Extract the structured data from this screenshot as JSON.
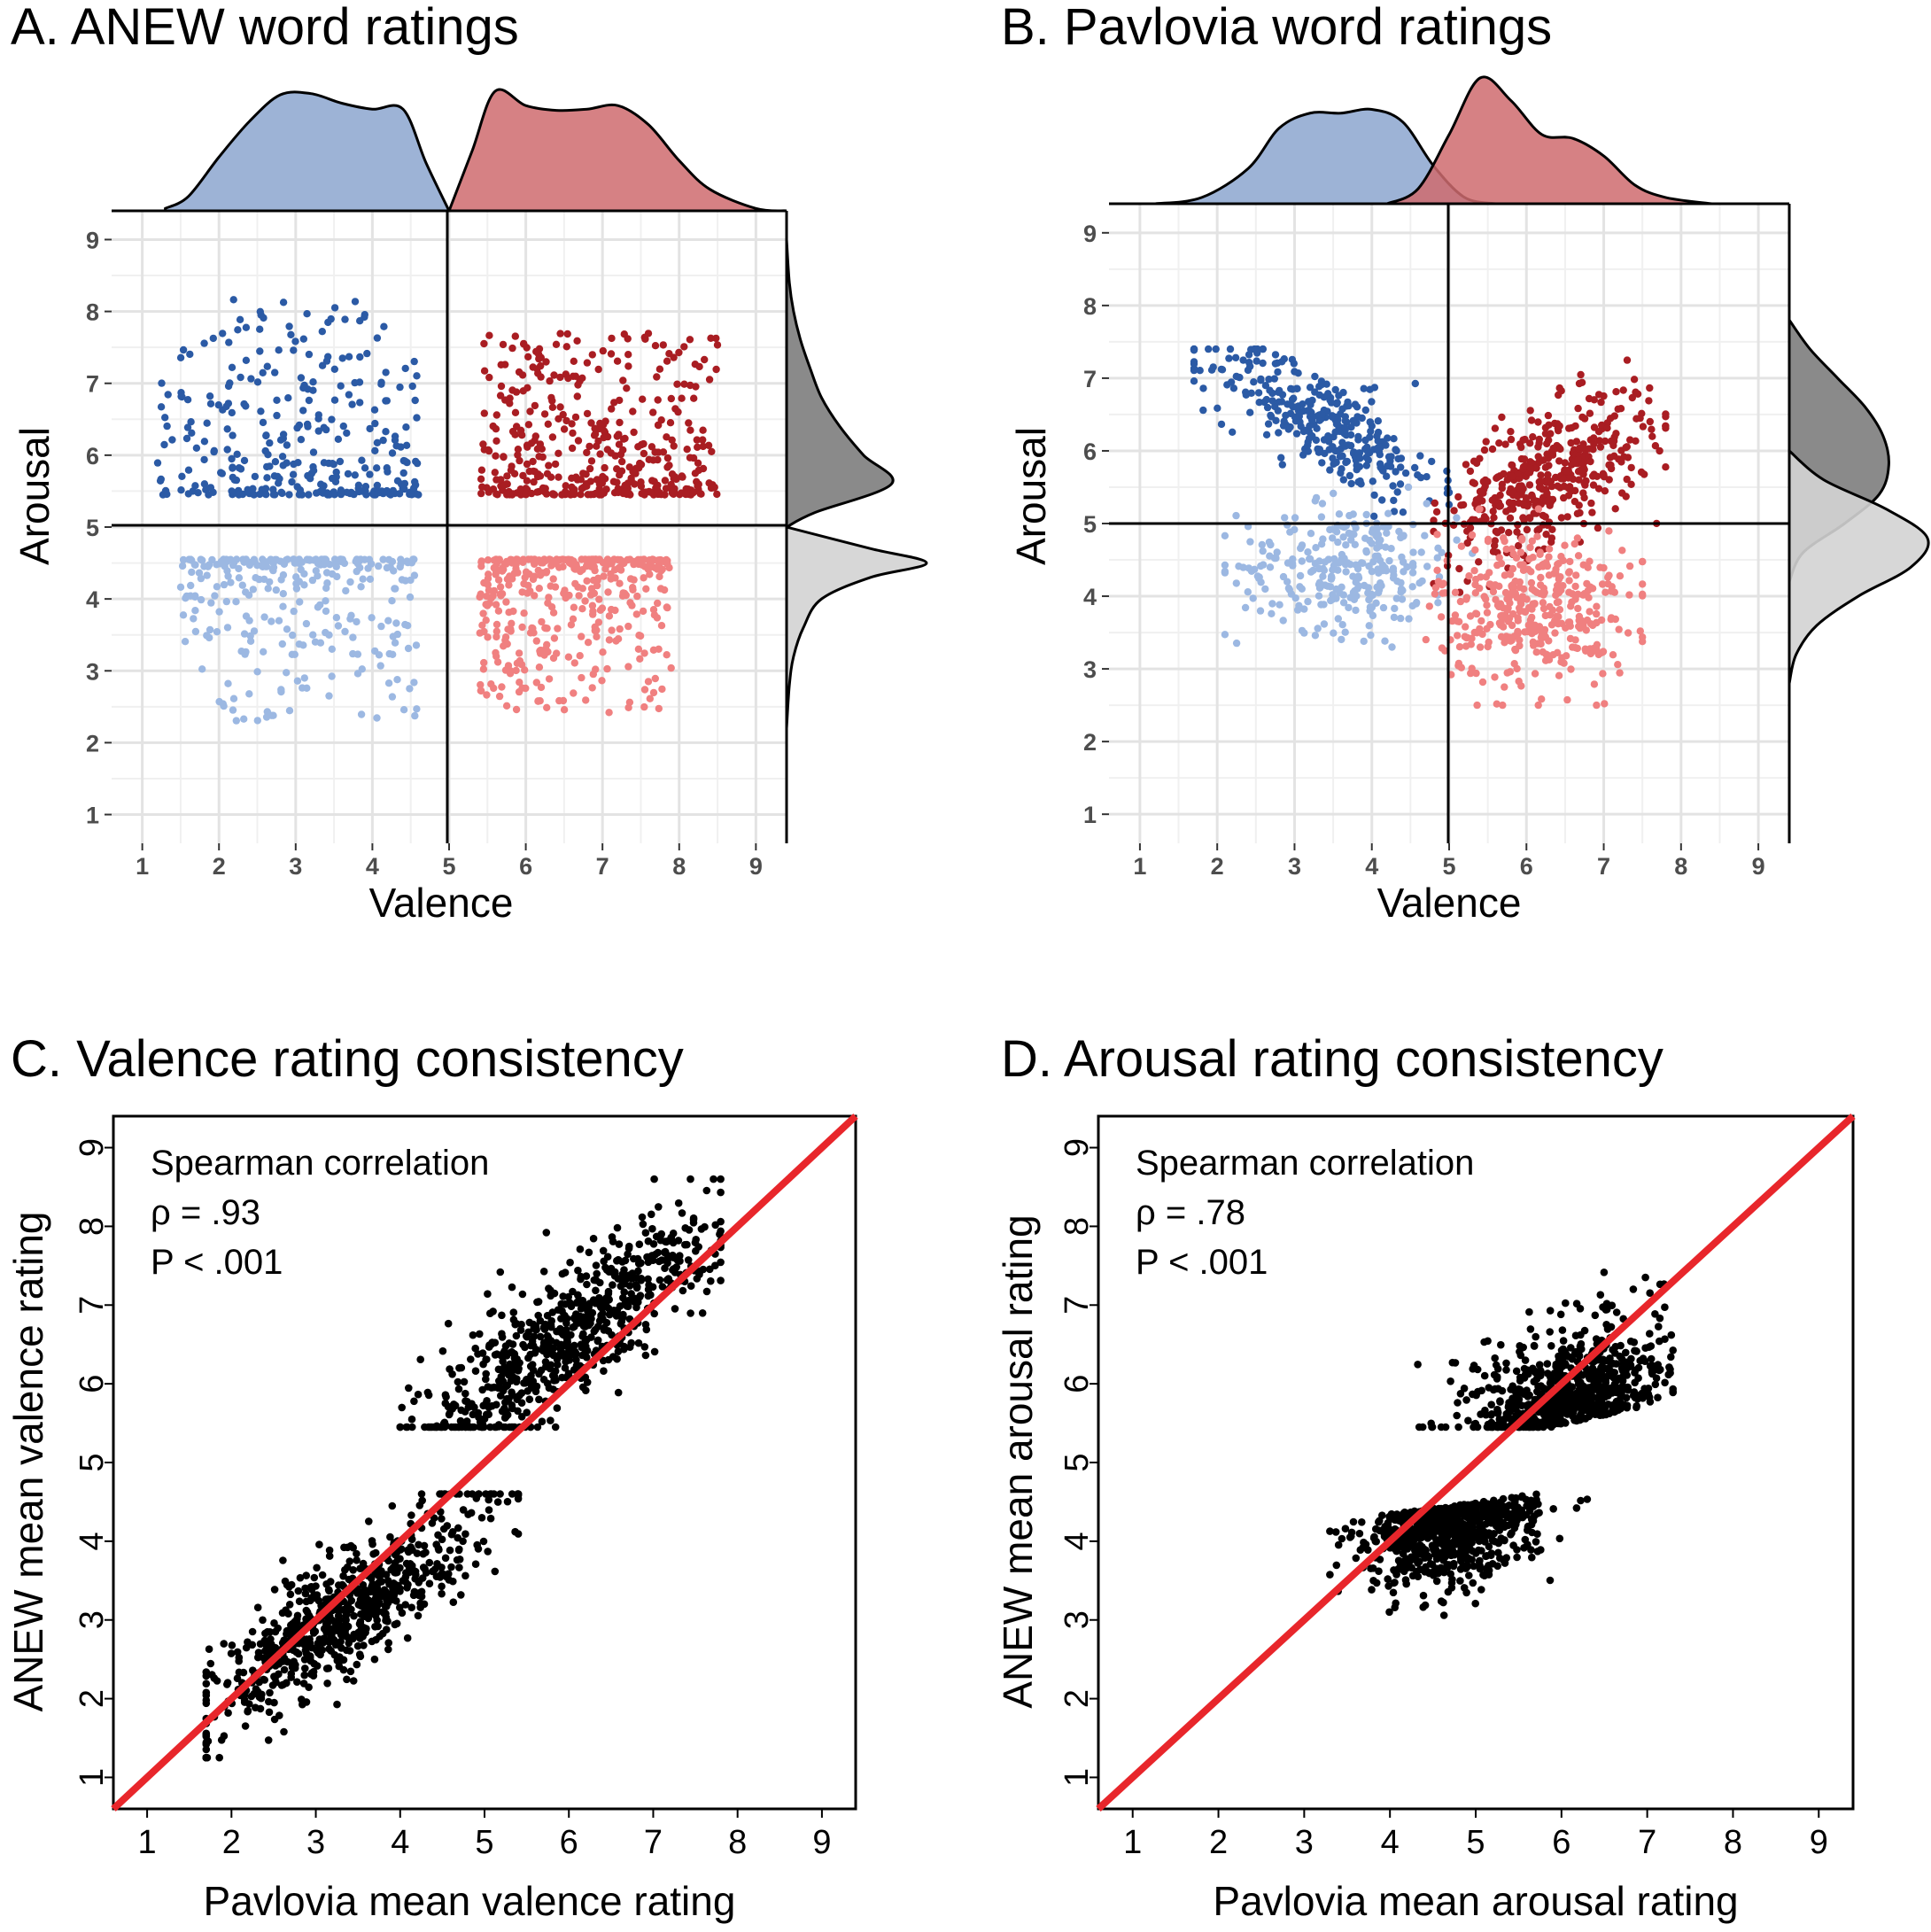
{
  "chart_data": [
    {
      "panel": "A",
      "type": "scatter",
      "title": "A. ANEW word ratings",
      "xlabel": "Valence",
      "ylabel": "Arousal",
      "xlim": [
        0.6,
        9.4
      ],
      "ylim": [
        0.6,
        9.4
      ],
      "xticks": [
        1,
        2,
        3,
        4,
        5,
        6,
        7,
        8,
        9
      ],
      "yticks": [
        1,
        2,
        3,
        4,
        5,
        6,
        7,
        8,
        9
      ],
      "reference_lines": {
        "x": 5,
        "y": 5
      },
      "grid": true,
      "colors": {
        "neg_high": "#2b5aa5",
        "neg_low": "#9cb8e2",
        "pos_high": "#a91d22",
        "pos_low": "#f08080",
        "neg_density": "#8ca6cf",
        "pos_density": "#cf6b6f",
        "high_density": "#7d7d7d",
        "low_density": "#d3d3d3"
      },
      "series": [
        {
          "group": "negative-high-arousal",
          "color": "#2b5aa5",
          "x_range": [
            1.2,
            4.6
          ],
          "y_range": [
            5.45,
            8.2
          ],
          "count": 320
        },
        {
          "group": "negative-low-arousal",
          "color": "#9cb8e2",
          "x_range": [
            1.5,
            4.6
          ],
          "y_range": [
            2.3,
            4.55
          ],
          "count": 280
        },
        {
          "group": "positive-high-arousal",
          "color": "#a91d22",
          "x_range": [
            5.4,
            8.5
          ],
          "y_range": [
            5.45,
            7.7
          ],
          "count": 420
        },
        {
          "group": "positive-low-arousal",
          "color": "#f08080",
          "x_range": [
            5.4,
            7.9
          ],
          "y_range": [
            2.4,
            4.55
          ],
          "count": 380
        }
      ],
      "marginal_density": {
        "top": [
          {
            "group": "negative",
            "color": "#8ca6cf",
            "x": [
              1.3,
              1.6,
              2.0,
              2.4,
              2.8,
              3.2,
              3.6,
              4.0,
              4.4,
              4.7,
              5.0
            ],
            "density": [
              0.02,
              0.12,
              0.45,
              0.75,
              0.97,
              0.98,
              0.9,
              0.85,
              0.85,
              0.4,
              0.0
            ]
          },
          {
            "group": "positive",
            "color": "#cf6b6f",
            "x": [
              5.0,
              5.3,
              5.6,
              6.0,
              6.4,
              6.8,
              7.2,
              7.6,
              8.0,
              8.4,
              9.0,
              9.4
            ],
            "density": [
              0.0,
              0.5,
              1.0,
              0.88,
              0.84,
              0.85,
              0.88,
              0.72,
              0.42,
              0.18,
              0.02,
              0.0
            ]
          }
        ],
        "right": [
          {
            "group": "high-arousal",
            "color": "#7d7d7d",
            "y": [
              5.0,
              5.2,
              5.6,
              6.0,
              6.4,
              6.8,
              7.2,
              7.6,
              8.0,
              8.4,
              9.0
            ],
            "density": [
              0.0,
              0.2,
              0.75,
              0.55,
              0.38,
              0.25,
              0.17,
              0.1,
              0.05,
              0.02,
              0.0
            ]
          },
          {
            "group": "low-arousal",
            "color": "#d3d3d3",
            "y": [
              2.2,
              2.8,
              3.2,
              3.6,
              4.0,
              4.3,
              4.5,
              4.7,
              5.0
            ],
            "density": [
              0.0,
              0.02,
              0.05,
              0.12,
              0.25,
              0.6,
              1.0,
              0.6,
              0.0
            ]
          }
        ]
      }
    },
    {
      "panel": "B",
      "type": "scatter",
      "title": "B. Pavlovia word ratings",
      "xlabel": "Valence",
      "ylabel": "Arousal",
      "xlim": [
        0.6,
        9.4
      ],
      "ylim": [
        0.6,
        9.4
      ],
      "xticks": [
        1,
        2,
        3,
        4,
        5,
        6,
        7,
        8,
        9
      ],
      "yticks": [
        1,
        2,
        3,
        4,
        5,
        6,
        7,
        8,
        9
      ],
      "reference_lines": {
        "x": 5,
        "y": 5
      },
      "grid": true,
      "colors": {
        "neg_high": "#2b5aa5",
        "neg_low": "#9cb8e2",
        "pos_high": "#a91d22",
        "pos_low": "#f08080",
        "neg_density": "#8ca6cf",
        "pos_density": "#cf6b6f",
        "overlap_density": "#7a6f99",
        "high_density": "#7d7d7d",
        "low_density": "#d3d3d3"
      },
      "series": [
        {
          "group": "negative-high-arousal",
          "color": "#2b5aa5",
          "x_range": [
            1.7,
            5.0
          ],
          "y_range": [
            4.5,
            7.4
          ],
          "count": 320
        },
        {
          "group": "negative-low-arousal",
          "color": "#9cb8e2",
          "x_range": [
            2.1,
            5.3
          ],
          "y_range": [
            3.3,
            5.5
          ],
          "count": 280
        },
        {
          "group": "positive-high-arousal",
          "color": "#a91d22",
          "x_range": [
            4.8,
            7.8
          ],
          "y_range": [
            4.0,
            7.4
          ],
          "count": 420
        },
        {
          "group": "positive-low-arousal",
          "color": "#f08080",
          "x_range": [
            4.7,
            7.5
          ],
          "y_range": [
            2.5,
            5.2
          ],
          "count": 380
        }
      ],
      "marginal_density": {
        "top": [
          {
            "group": "negative",
            "color": "#8ca6cf",
            "x": [
              1.2,
              1.8,
              2.4,
              2.8,
              3.2,
              3.6,
              4.0,
              4.4,
              4.8,
              5.2,
              5.6
            ],
            "density": [
              0.0,
              0.05,
              0.28,
              0.6,
              0.72,
              0.72,
              0.75,
              0.65,
              0.3,
              0.05,
              0.0
            ]
          },
          {
            "group": "positive",
            "color": "#cf6b6f",
            "x": [
              4.2,
              4.6,
              5.0,
              5.4,
              5.8,
              6.2,
              6.6,
              7.0,
              7.4,
              7.8,
              8.4
            ],
            "density": [
              0.0,
              0.12,
              0.55,
              1.0,
              0.82,
              0.55,
              0.52,
              0.38,
              0.15,
              0.05,
              0.0
            ]
          }
        ],
        "right": [
          {
            "group": "high-arousal",
            "color": "#7d7d7d",
            "y": [
              4.2,
              4.6,
              5.0,
              5.4,
              5.8,
              6.2,
              6.6,
              7.0,
              7.4,
              7.8
            ],
            "density": [
              0.0,
              0.1,
              0.4,
              0.65,
              0.72,
              0.68,
              0.55,
              0.35,
              0.15,
              0.0
            ]
          },
          {
            "group": "low-arousal",
            "color": "#d3d3d3",
            "y": [
              2.8,
              3.2,
              3.6,
              4.0,
              4.4,
              4.8,
              5.2,
              5.6,
              6.0
            ],
            "density": [
              0.0,
              0.05,
              0.2,
              0.5,
              0.88,
              1.0,
              0.7,
              0.25,
              0.0
            ]
          }
        ]
      }
    },
    {
      "panel": "C",
      "type": "scatter",
      "title": "C. Valence rating consistency",
      "xlabel": "Pavlovia mean valence rating",
      "ylabel": "ANEW mean valence rating",
      "xlim": [
        0.6,
        9.4
      ],
      "ylim": [
        0.6,
        9.4
      ],
      "xticks": [
        1,
        2,
        3,
        4,
        5,
        6,
        7,
        8,
        9
      ],
      "yticks": [
        1,
        2,
        3,
        4,
        5,
        6,
        7,
        8,
        9
      ],
      "reference_line": {
        "type": "identity",
        "color": "#e8262b"
      },
      "grid": false,
      "annotation": [
        "Spearman correlation",
        "ρ = .93",
        "P < .001"
      ],
      "series": [
        {
          "group": "negative-words",
          "color": "#000000",
          "x_range": [
            1.7,
            5.4
          ],
          "y_range": [
            1.25,
            4.6
          ],
          "count": 720
        },
        {
          "group": "positive-words",
          "color": "#000000",
          "x_range": [
            4.0,
            7.8
          ],
          "y_range": [
            5.45,
            8.6
          ],
          "count": 720
        }
      ]
    },
    {
      "panel": "D",
      "type": "scatter",
      "title": "D. Arousal rating consistency",
      "xlabel": "Pavlovia mean arousal rating",
      "ylabel": "ANEW mean arousal rating",
      "xlim": [
        0.6,
        9.4
      ],
      "ylim": [
        0.6,
        9.4
      ],
      "xticks": [
        1,
        2,
        3,
        4,
        5,
        6,
        7,
        8,
        9
      ],
      "yticks": [
        1,
        2,
        3,
        4,
        5,
        6,
        7,
        8,
        9
      ],
      "reference_line": {
        "type": "identity",
        "color": "#e8262b"
      },
      "grid": false,
      "annotation": [
        "Spearman correlation",
        "ρ = .78",
        "P < .001"
      ],
      "series": [
        {
          "group": "low-arousal-words",
          "color": "#000000",
          "x_range": [
            3.3,
            6.3
          ],
          "y_range": [
            2.3,
            4.6
          ],
          "count": 720
        },
        {
          "group": "high-arousal-words",
          "color": "#000000",
          "x_range": [
            4.2,
            7.3
          ],
          "y_range": [
            5.45,
            8.2
          ],
          "count": 720
        }
      ]
    }
  ]
}
